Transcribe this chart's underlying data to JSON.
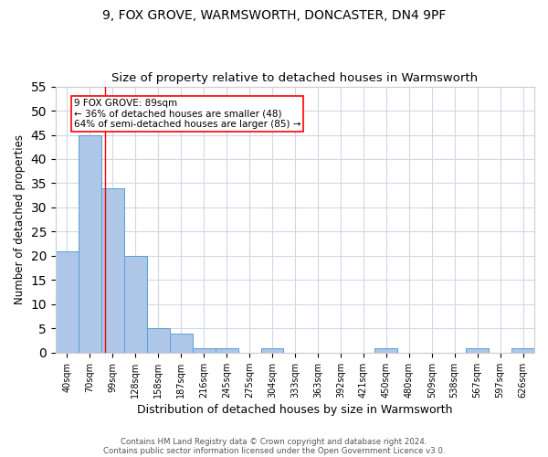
{
  "title1": "9, FOX GROVE, WARMSWORTH, DONCASTER, DN4 9PF",
  "title2": "Size of property relative to detached houses in Warmsworth",
  "xlabel": "Distribution of detached houses by size in Warmsworth",
  "ylabel": "Number of detached properties",
  "categories": [
    "40sqm",
    "70sqm",
    "99sqm",
    "128sqm",
    "158sqm",
    "187sqm",
    "216sqm",
    "245sqm",
    "275sqm",
    "304sqm",
    "333sqm",
    "363sqm",
    "392sqm",
    "421sqm",
    "450sqm",
    "480sqm",
    "509sqm",
    "538sqm",
    "567sqm",
    "597sqm",
    "626sqm"
  ],
  "values": [
    21,
    45,
    34,
    20,
    5,
    4,
    1,
    1,
    0,
    1,
    0,
    0,
    0,
    0,
    1,
    0,
    0,
    0,
    1,
    0,
    1
  ],
  "bar_color": "#aec6e8",
  "bar_edge_color": "#5a9fd4",
  "ylim": [
    0,
    55
  ],
  "yticks": [
    0,
    5,
    10,
    15,
    20,
    25,
    30,
    35,
    40,
    45,
    50,
    55
  ],
  "red_line_x": 1.655,
  "annotation_text": "9 FOX GROVE: 89sqm\n← 36% of detached houses are smaller (48)\n64% of semi-detached houses are larger (85) →",
  "footer1": "Contains HM Land Registry data © Crown copyright and database right 2024.",
  "footer2": "Contains public sector information licensed under the Open Government Licence v3.0.",
  "bg_color": "#ffffff",
  "grid_color": "#d0d8e8",
  "title1_fontsize": 10,
  "title2_fontsize": 9.5
}
